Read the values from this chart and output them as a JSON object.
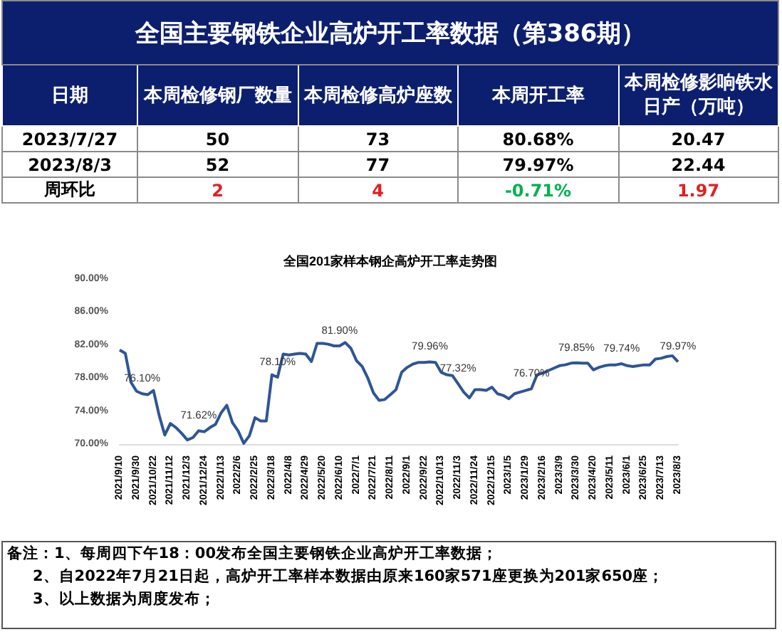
{
  "chart_data": [
    {
      "type": "other",
      "title": "全国主要钢铁企业高炉开工率数据（第386期）",
      "ylabel": "日期",
      "categories": [
        "本周检修钢厂数量",
        "本周检修高炉座数",
        "本周开工率",
        "本周检修影响铁水日产（万吨）"
      ],
      "series": [
        {
          "name": "2023/7/27",
          "color": "#000000",
          "values": [
            50,
            73,
            80.68,
            20.47
          ],
          "value_labels": [
            "50",
            "73",
            "80.68%",
            "20.47"
          ]
        },
        {
          "name": "2023/8/3",
          "color": "#000000",
          "values": [
            52,
            77,
            79.97,
            22.44
          ],
          "value_labels": [
            "52",
            "77",
            "79.97%",
            "22.44"
          ]
        },
        {
          "name": "周环比",
          "colors": [
            "#e02020",
            "#e02020",
            "#00b050",
            "#e02020"
          ],
          "values": [
            2,
            4,
            -0.71,
            1.97
          ],
          "value_labels": [
            "2",
            "4",
            "-0.71%",
            "1.97"
          ]
        }
      ]
    },
    {
      "type": "line",
      "title": "全国201家样本钢企高炉开工率走势图",
      "categories": [
        "2021/9/10",
        null,
        null,
        "2021/9/30",
        null,
        null,
        "2021/10/22",
        null,
        null,
        "2021/11/12",
        null,
        null,
        "2021/12/3",
        null,
        null,
        "2021/12/24",
        null,
        null,
        "2022/1/13",
        null,
        null,
        "2022/2/6",
        null,
        null,
        "2022/2/25",
        null,
        null,
        "2022/3/18",
        null,
        null,
        "2022/4/8",
        null,
        null,
        "2022/4/29",
        null,
        null,
        "2022/5/20",
        null,
        null,
        "2022/6/10",
        null,
        null,
        "2022/7/1",
        null,
        null,
        "2022/7/21",
        null,
        null,
        "2022/8/11",
        null,
        null,
        "2022/9/1",
        null,
        null,
        "2022/9/22",
        null,
        null,
        "2022/10/13",
        null,
        null,
        "2022/11/3",
        null,
        null,
        "2022/11/24",
        null,
        null,
        "2022/12/15",
        null,
        null,
        "2023/1/5",
        null,
        null,
        "2023/1/29",
        null,
        null,
        "2023/2/16",
        null,
        null,
        "2023/3/9",
        null,
        null,
        "2023/3/30",
        null,
        null,
        "2023/4/20",
        null,
        null,
        "2023/5/11",
        null,
        null,
        "2023/6/1",
        null,
        null,
        "2023/6/25",
        null,
        null,
        "2023/7/13",
        null,
        null,
        "2023/8/3"
      ],
      "series": [
        {
          "color": "#2f5597",
          "values": [
            81.4,
            81.0,
            77.5,
            76.4,
            76.1,
            76.0,
            76.5,
            73.5,
            71.1,
            72.5,
            72.0,
            71.3,
            70.5,
            70.8,
            71.62,
            71.5,
            72.0,
            72.4,
            73.8,
            74.7,
            72.6,
            71.6,
            70.1,
            71.0,
            73.2,
            72.8,
            72.8,
            78.4,
            78.1,
            80.9,
            80.8,
            80.9,
            81.0,
            80.9,
            80.0,
            82.2,
            82.2,
            82.1,
            81.9,
            81.9,
            82.3,
            81.6,
            80.1,
            79.4,
            78.0,
            76.2,
            75.3,
            75.4,
            76.0,
            76.6,
            78.7,
            79.3,
            79.7,
            79.9,
            79.9,
            79.96,
            79.9,
            78.7,
            78.4,
            78.3,
            77.32,
            76.3,
            75.6,
            76.6,
            76.6,
            76.5,
            76.9,
            76.1,
            75.9,
            75.5,
            76.1,
            76.3,
            76.5,
            76.7,
            78.4,
            78.6,
            78.9,
            79.2,
            79.5,
            79.6,
            79.8,
            79.85,
            79.8,
            79.8,
            79.0,
            79.3,
            79.5,
            79.6,
            79.6,
            79.74,
            79.5,
            79.4,
            79.5,
            79.6,
            79.6,
            80.3,
            80.4,
            80.6,
            80.7,
            79.97
          ],
          "value_labels": [
            null,
            null,
            null,
            null,
            "76.10%",
            null,
            null,
            null,
            null,
            null,
            null,
            null,
            null,
            null,
            "71.62%",
            null,
            null,
            null,
            null,
            null,
            null,
            null,
            null,
            null,
            null,
            null,
            null,
            null,
            "78.10%",
            null,
            null,
            null,
            null,
            null,
            null,
            null,
            null,
            null,
            null,
            "81.90%",
            null,
            null,
            null,
            null,
            null,
            null,
            null,
            null,
            null,
            null,
            null,
            null,
            null,
            null,
            null,
            "79.96%",
            null,
            null,
            null,
            null,
            "77.32%",
            null,
            null,
            null,
            null,
            null,
            null,
            null,
            null,
            null,
            null,
            null,
            null,
            "76.70%",
            null,
            null,
            null,
            null,
            null,
            null,
            null,
            "79.85%",
            null,
            null,
            null,
            null,
            null,
            null,
            null,
            "79.74%",
            null,
            null,
            null,
            null,
            null,
            null,
            null,
            null,
            null,
            "79.97%"
          ]
        }
      ],
      "ylim": [
        70,
        90
      ],
      "yticks": [
        {
          "value": 70,
          "label": "70.00%"
        },
        {
          "value": 74,
          "label": "74.00%"
        },
        {
          "value": 78,
          "label": "78.00%"
        },
        {
          "value": 82,
          "label": "82.00%"
        },
        {
          "value": 86,
          "label": "86.00%"
        },
        {
          "value": 90,
          "label": "90.00%"
        }
      ],
      "grid": false,
      "marker": "none",
      "line_style": "solid",
      "annotations": [
        "备注：1、每周四下午18：00发布全国主要钢铁企业高炉开工率数据；",
        "2、自2022年7月21日起，高炉开工率样本数据由原来160家571座更换为201家650座；",
        "3、以上数据为周度发布；"
      ]
    }
  ]
}
